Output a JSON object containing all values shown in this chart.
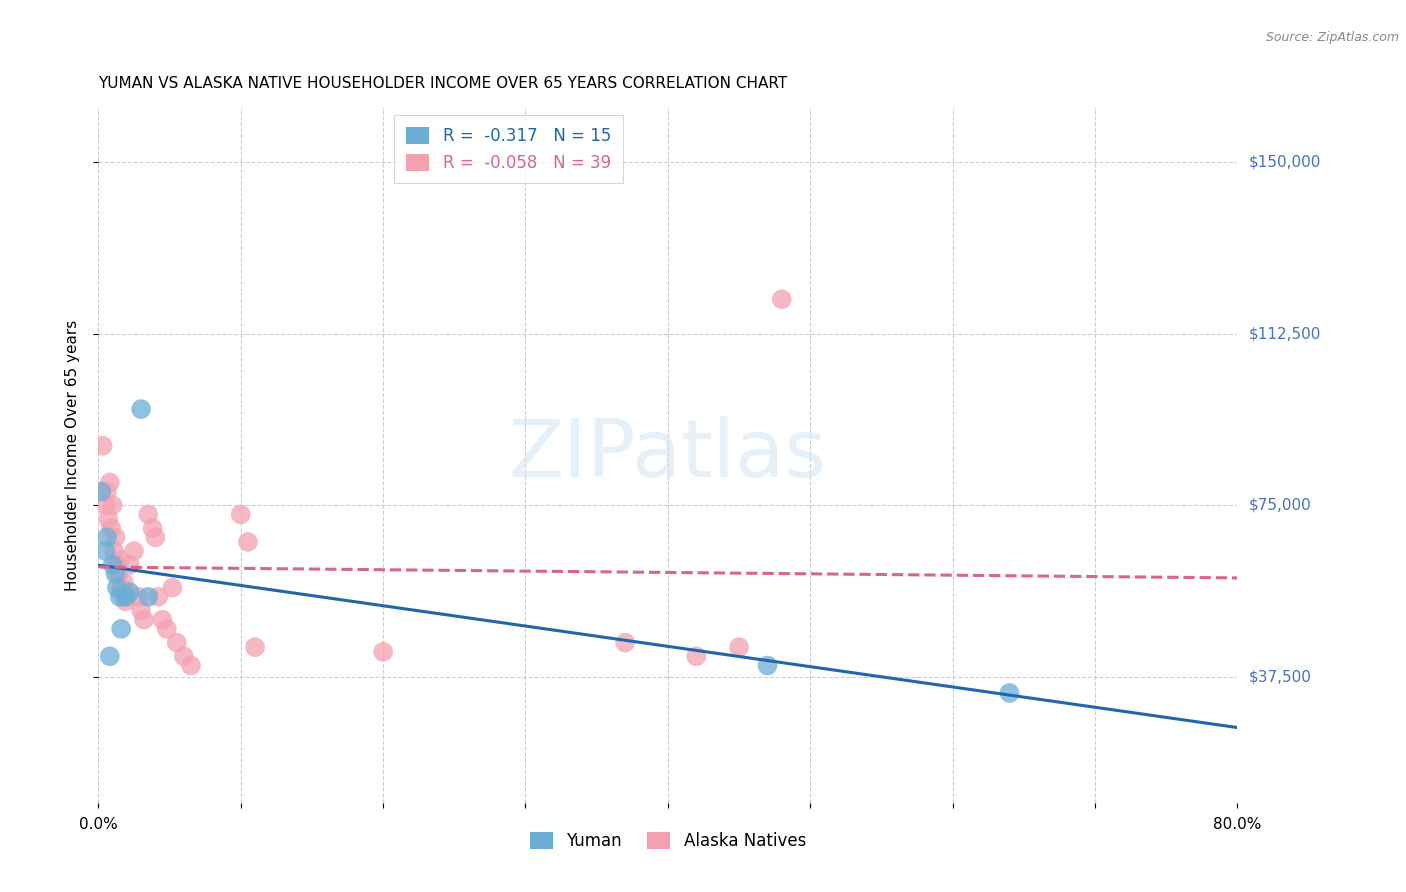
{
  "title": "YUMAN VS ALASKA NATIVE HOUSEHOLDER INCOME OVER 65 YEARS CORRELATION CHART",
  "source": "Source: ZipAtlas.com",
  "ylabel": "Householder Income Over 65 years",
  "watermark": "ZIPatlas",
  "yuman_R": -0.317,
  "yuman_N": 15,
  "alaska_R": -0.058,
  "alaska_N": 39,
  "yaxis_ticks": [
    37500,
    75000,
    112500,
    150000
  ],
  "yaxis_labels": [
    "$37,500",
    "$75,000",
    "$112,500",
    "$150,000"
  ],
  "xlim": [
    0.0,
    0.8
  ],
  "ylim": [
    10000,
    162000
  ],
  "blue_color": "#6aaed6",
  "pink_color": "#f4a0b0",
  "blue_line_color": "#2166ac",
  "pink_line_color": "#d6678a",
  "right_label_color": "#4472c4",
  "yuman_x": [
    0.002,
    0.005,
    0.006,
    0.008,
    0.01,
    0.012,
    0.013,
    0.015,
    0.016,
    0.019,
    0.022,
    0.03,
    0.035,
    0.47,
    0.64
  ],
  "yuman_y": [
    78000,
    65000,
    68000,
    42000,
    62000,
    60000,
    57000,
    55000,
    48000,
    55000,
    56000,
    96000,
    55000,
    40000,
    34000
  ],
  "alaska_x": [
    0.003,
    0.005,
    0.006,
    0.007,
    0.008,
    0.009,
    0.01,
    0.011,
    0.012,
    0.013,
    0.014,
    0.015,
    0.016,
    0.018,
    0.019,
    0.02,
    0.022,
    0.025,
    0.028,
    0.03,
    0.032,
    0.035,
    0.038,
    0.04,
    0.042,
    0.045,
    0.048,
    0.052,
    0.055,
    0.06,
    0.065,
    0.1,
    0.105,
    0.11,
    0.2,
    0.37,
    0.42,
    0.45,
    0.48
  ],
  "alaska_y": [
    88000,
    75000,
    78000,
    72000,
    80000,
    70000,
    75000,
    65000,
    68000,
    62000,
    60000,
    63000,
    57000,
    58000,
    54000,
    55000,
    62000,
    65000,
    55000,
    52000,
    50000,
    73000,
    70000,
    68000,
    55000,
    50000,
    48000,
    57000,
    45000,
    42000,
    40000,
    73000,
    67000,
    44000,
    43000,
    45000,
    42000,
    44000,
    120000
  ]
}
